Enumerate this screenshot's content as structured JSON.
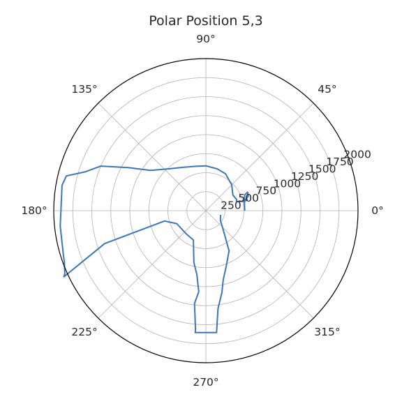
{
  "chart_data": {
    "type": "line",
    "projection": "polar",
    "title": "Polar Position 5,3",
    "theta_unit": "degrees",
    "theta_ticks": [
      "0°",
      "45°",
      "90°",
      "135°",
      "180°",
      "225°",
      "270°",
      "315°"
    ],
    "r_ticks": [
      250,
      500,
      750,
      1000,
      1250,
      1500,
      1750,
      2000
    ],
    "r_tick_labels": [
      "250",
      "500",
      "750",
      "1000",
      "1250",
      "1500",
      "1750",
      "2000"
    ],
    "rlim": [
      0,
      2000
    ],
    "grid": true,
    "series": [
      {
        "color": "#3d76b6",
        "points": [
          [
            0,
            510
          ],
          [
            13,
            520
          ],
          [
            22,
            550
          ],
          [
            24,
            600
          ],
          [
            19,
            590
          ],
          [
            13,
            515
          ],
          [
            15,
            560
          ],
          [
            14,
            500
          ],
          [
            17,
            420
          ],
          [
            20,
            430
          ],
          [
            30,
            410
          ],
          [
            45,
            480
          ],
          [
            62,
            550
          ],
          [
            75,
            570
          ],
          [
            90,
            590
          ],
          [
            104,
            600
          ],
          [
            117,
            640
          ],
          [
            132,
            740
          ],
          [
            144,
            900
          ],
          [
            151,
            1170
          ],
          [
            157,
            1500
          ],
          [
            162,
            1660
          ],
          [
            166,
            1890
          ],
          [
            170,
            1920
          ],
          [
            186,
            1925
          ],
          [
            197,
            1960
          ],
          [
            200,
            1980
          ],
          [
            204,
            2030
          ],
          [
            205,
            2060
          ],
          [
            198,
            1400
          ],
          [
            194,
            560
          ],
          [
            204,
            420
          ],
          [
            230,
            400
          ],
          [
            247,
            420
          ],
          [
            257,
            700
          ],
          [
            262,
            850
          ],
          [
            265,
            1070
          ],
          [
            263,
            1230
          ],
          [
            265,
            1570
          ],
          [
            265,
            1610
          ],
          [
            275,
            1610
          ],
          [
            277,
            1300
          ],
          [
            281,
            1100
          ],
          [
            284,
            940
          ],
          [
            290,
            780
          ],
          [
            300,
            610
          ],
          [
            314,
            320
          ],
          [
            326,
            230
          ],
          [
            344,
            200
          ]
        ]
      }
    ]
  }
}
